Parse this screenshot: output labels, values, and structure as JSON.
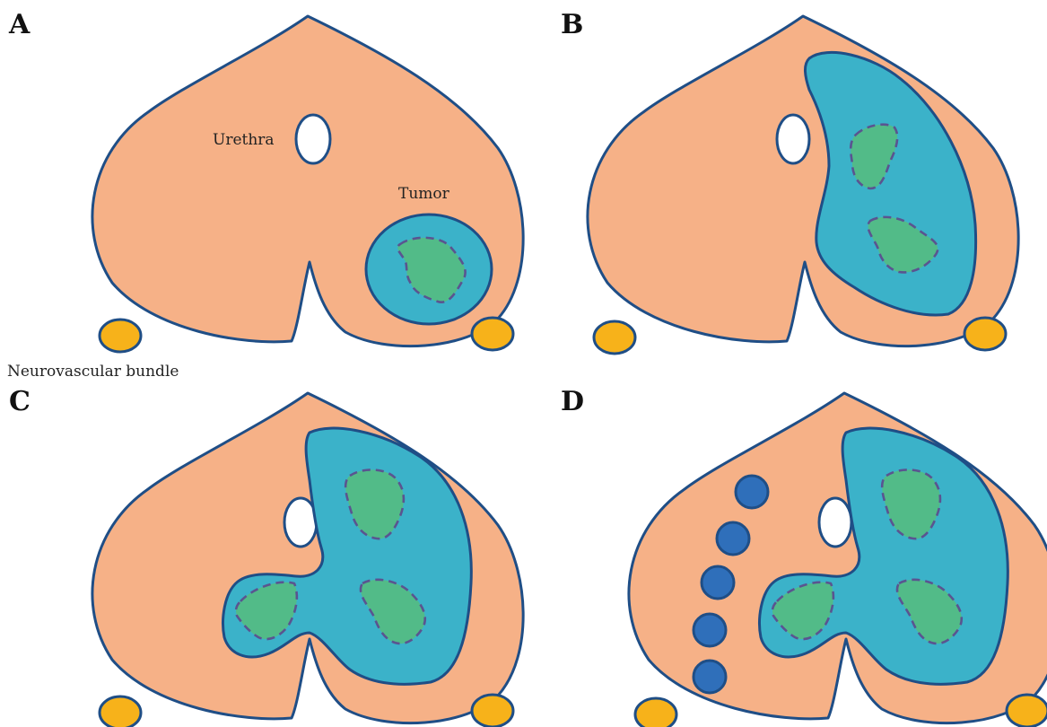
{
  "panels": {
    "a": {
      "letter": "A"
    },
    "b": {
      "letter": "B"
    },
    "c": {
      "letter": "C"
    },
    "d": {
      "letter": "D"
    }
  },
  "labels": {
    "urethra": "Urethra",
    "tumor": "Tumor",
    "neurovascular_bundle": "Neurovascular bundle"
  },
  "colors": {
    "prostate": "#f6b187",
    "tumor": "#3bb2c9",
    "tumor_core": "#52bb88",
    "neurovascular": "#f7b21a",
    "lesion_dot": "#2f6fba",
    "outline": "#1f4e86"
  }
}
